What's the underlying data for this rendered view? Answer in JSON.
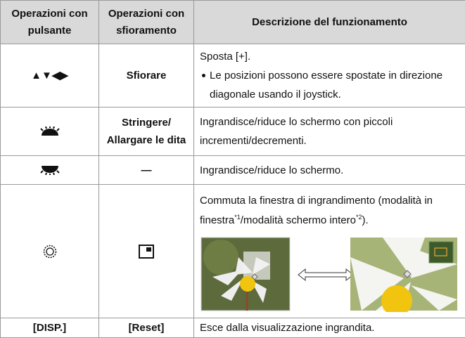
{
  "table": {
    "header": [
      "Operazioni con pulsante",
      "Operazioni con sfioramento",
      "Descrizione del funzionamento"
    ],
    "rows": [
      {
        "button": "▲▼◀▶",
        "touch": "Sfiorare",
        "description": "Sposta [+].",
        "bullet": "Le posizioni possono essere spostate in direzione diagonale usando il joystick."
      },
      {
        "touch": "Stringere/ Allargare le dita",
        "description": "Ingrandisce/riduce lo schermo con piccoli incrementi/decrementi."
      },
      {
        "touch": "—",
        "description": "Ingrandisce/riduce lo schermo."
      },
      {
        "description_parts": [
          "Commuta la finestra di ingrandimento (modalità in finestra",
          "*1",
          "/modalità schermo intero",
          "*2",
          ")."
        ]
      },
      {
        "button": "[DISP.]",
        "touch": "[Reset]",
        "description": "Esce dalla visualizzazione ingrandita."
      }
    ]
  }
}
